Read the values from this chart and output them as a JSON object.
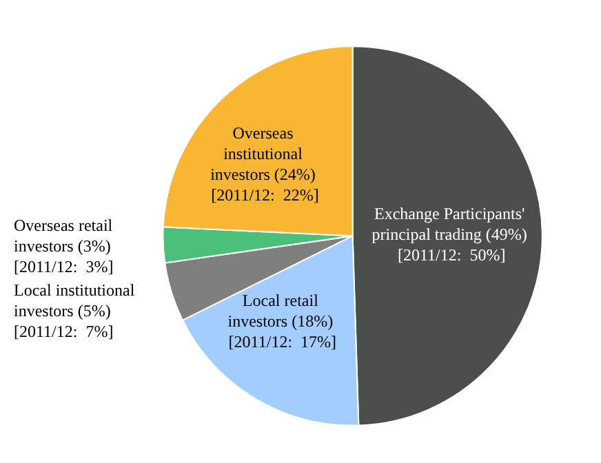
{
  "chart_data": {
    "type": "pie",
    "categories": [
      "Exchange Participants' principal trading",
      "Local retail investors",
      "Local institutional investors",
      "Overseas retail investors",
      "Overseas institutional investors"
    ],
    "values": [
      49,
      18,
      5,
      3,
      24
    ],
    "value_labels": [
      "(49%) [2011/12:  50%]",
      "(18%) [2011/12:  17%]",
      "(5%) [2011/12:  7%]",
      "(3%) [2011/12:  3%]",
      "(24%) [2011/12:  22%]"
    ],
    "colors": [
      "#4a4f4c",
      "#a3cdfd",
      "#7f7f7f",
      "#4cbf7a",
      "#f9b632"
    ],
    "legend": false
  }
}
